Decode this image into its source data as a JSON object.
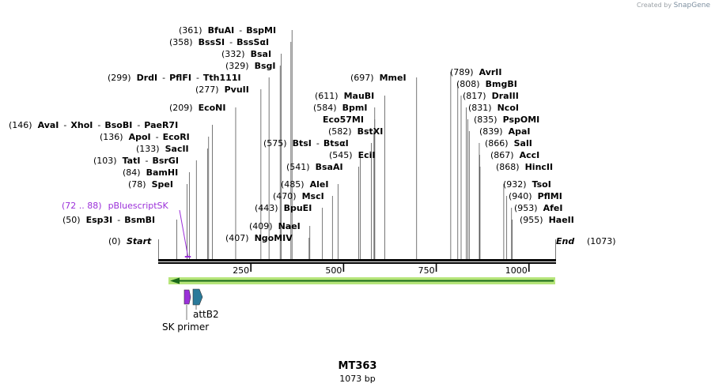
{
  "credit": {
    "prefix": "Created by",
    "brand": "SnapGene"
  },
  "map": {
    "name": "MT363",
    "length_label": "1073 bp",
    "length": 1073,
    "scale_ticks": [
      "250",
      "500",
      "750",
      "1000"
    ],
    "start_label": "Start",
    "start_pos": "(0)",
    "end_label": "End",
    "end_pos": "(1073)"
  },
  "sites": [
    {
      "pos": "(361)",
      "names": [
        "BfuAI",
        "BspMI"
      ]
    },
    {
      "pos": "(358)",
      "names": [
        "BssSI",
        "BssSαI"
      ]
    },
    {
      "pos": "(332)",
      "names": [
        "BsaI"
      ]
    },
    {
      "pos": "(329)",
      "names": [
        "BsgI"
      ]
    },
    {
      "pos": "(299)",
      "names": [
        "DrdI",
        "PflFI",
        "Tth111I"
      ]
    },
    {
      "pos": "(277)",
      "names": [
        "PvuII"
      ]
    },
    {
      "pos": "(209)",
      "names": [
        "EcoNI"
      ]
    },
    {
      "pos": "(146)",
      "names": [
        "AvaI",
        "XhoI",
        "BsoBI",
        "PaeR7I"
      ]
    },
    {
      "pos": "(136)",
      "names": [
        "ApoI",
        "EcoRI"
      ]
    },
    {
      "pos": "(133)",
      "names": [
        "SacII"
      ]
    },
    {
      "pos": "(103)",
      "names": [
        "TatI",
        "BsrGI"
      ]
    },
    {
      "pos": "(84)",
      "names": [
        "BamHI"
      ]
    },
    {
      "pos": "(78)",
      "names": [
        "SpeI"
      ]
    },
    {
      "pos": "(50)",
      "names": [
        "Esp3I",
        "BsmBI"
      ]
    },
    {
      "pos": "(697)",
      "names": [
        "MmeI"
      ]
    },
    {
      "pos": "(611)",
      "names": [
        "MauBI"
      ]
    },
    {
      "pos": "(584)",
      "names": [
        "BpmI"
      ]
    },
    {
      "pos": "",
      "names": [
        "Eco57MI"
      ]
    },
    {
      "pos": "(582)",
      "names": [
        "BstXI"
      ]
    },
    {
      "pos": "(575)",
      "names": [
        "BtsI",
        "BtsαI"
      ]
    },
    {
      "pos": "(545)",
      "names": [
        "EciI"
      ]
    },
    {
      "pos": "(541)",
      "names": [
        "BsaAI"
      ]
    },
    {
      "pos": "(485)",
      "names": [
        "AleI"
      ]
    },
    {
      "pos": "(470)",
      "names": [
        "MscI"
      ]
    },
    {
      "pos": "(443)",
      "names": [
        "BpuEI"
      ]
    },
    {
      "pos": "(409)",
      "names": [
        "NaeI"
      ]
    },
    {
      "pos": "(407)",
      "names": [
        "NgoMIV"
      ]
    },
    {
      "pos": "(789)",
      "names": [
        "AvrII"
      ]
    },
    {
      "pos": "(808)",
      "names": [
        "BmgBI"
      ]
    },
    {
      "pos": "(817)",
      "names": [
        "DraIII"
      ]
    },
    {
      "pos": "(831)",
      "names": [
        "NcoI"
      ]
    },
    {
      "pos": "(835)",
      "names": [
        "PspOMI"
      ]
    },
    {
      "pos": "(839)",
      "names": [
        "ApaI"
      ]
    },
    {
      "pos": "(866)",
      "names": [
        "SalI"
      ]
    },
    {
      "pos": "(867)",
      "names": [
        "AccI"
      ]
    },
    {
      "pos": "(868)",
      "names": [
        "HincII"
      ]
    },
    {
      "pos": "(932)",
      "names": [
        "TsoI"
      ]
    },
    {
      "pos": "(940)",
      "names": [
        "PflMI"
      ]
    },
    {
      "pos": "(953)",
      "names": [
        "AfeI"
      ]
    },
    {
      "pos": "(955)",
      "names": [
        "HaeII"
      ]
    }
  ],
  "primer_binding": {
    "range": "(72 .. 88)",
    "name": "pBluescriptSK"
  },
  "features": [
    {
      "name": "SK primer",
      "color": "#9b30d9"
    },
    {
      "name": "attB2",
      "color": "#2a7a9a"
    }
  ],
  "colors": {
    "line": "#555555",
    "primer": "#9b30d9",
    "orf_fill": "#b6e57a",
    "orf_arrow": "#1a6a1a"
  }
}
